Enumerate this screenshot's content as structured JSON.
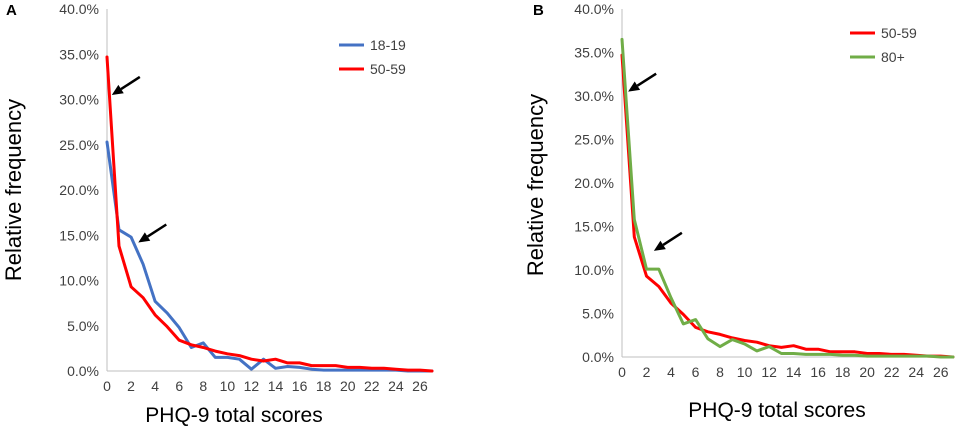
{
  "chart_data": [
    {
      "panel_label": "A",
      "type": "line",
      "xlabel": "PHQ-9 total scores",
      "ylabel": "Relative frequency",
      "ylim": [
        0,
        40
      ],
      "xlim": [
        0,
        27
      ],
      "xticks": [
        "0",
        "2",
        "4",
        "6",
        "8",
        "10",
        "12",
        "14",
        "16",
        "18",
        "20",
        "22",
        "24",
        "26"
      ],
      "yticks": [
        "0.0%",
        "5.0%",
        "10.0%",
        "15.0%",
        "20.0%",
        "25.0%",
        "30.0%",
        "35.0%",
        "40.0%"
      ],
      "legend_position": "top-right",
      "x": [
        0,
        1,
        2,
        3,
        4,
        5,
        6,
        7,
        8,
        9,
        10,
        11,
        12,
        13,
        14,
        15,
        16,
        17,
        18,
        19,
        20,
        21,
        22,
        23,
        24,
        25,
        26,
        27
      ],
      "series": [
        {
          "name": "18-19",
          "color": "#4472C4",
          "values": [
            25.3,
            15.6,
            14.8,
            11.8,
            7.7,
            6.4,
            4.8,
            2.6,
            3.1,
            1.5,
            1.5,
            1.3,
            0.2,
            1.3,
            0.3,
            0.5,
            0.4,
            0.2,
            0.1,
            0.1,
            0.1,
            0.1,
            0.1,
            0.1,
            0.1,
            0.0,
            0.0,
            0.0
          ]
        },
        {
          "name": "50-59",
          "color": "#FF0000",
          "values": [
            34.7,
            13.8,
            9.3,
            8.1,
            6.2,
            4.9,
            3.4,
            2.9,
            2.6,
            2.2,
            1.9,
            1.7,
            1.3,
            1.1,
            1.3,
            0.9,
            0.9,
            0.6,
            0.6,
            0.6,
            0.4,
            0.4,
            0.3,
            0.3,
            0.2,
            0.1,
            0.1,
            0.0
          ]
        }
      ],
      "annotations": [
        {
          "type": "arrow",
          "points_to_x": 0.4,
          "points_to_y": 30.5
        },
        {
          "type": "arrow",
          "points_to_x": 2.6,
          "points_to_y": 14.2
        }
      ]
    },
    {
      "panel_label": "B",
      "type": "line",
      "xlabel": "PHQ-9 total scores",
      "ylabel": "Relative frequency",
      "ylim": [
        0,
        40
      ],
      "xlim": [
        0,
        27
      ],
      "xticks": [
        "0",
        "2",
        "4",
        "6",
        "8",
        "10",
        "12",
        "14",
        "16",
        "18",
        "20",
        "22",
        "24",
        "26"
      ],
      "yticks": [
        "0.0%",
        "5.0%",
        "10.0%",
        "15.0%",
        "20.0%",
        "25.0%",
        "30.0%",
        "35.0%",
        "40.0%"
      ],
      "legend_position": "top-right",
      "x": [
        0,
        1,
        2,
        3,
        4,
        5,
        6,
        7,
        8,
        9,
        10,
        11,
        12,
        13,
        14,
        15,
        16,
        17,
        18,
        19,
        20,
        21,
        22,
        23,
        24,
        25,
        26,
        27
      ],
      "series": [
        {
          "name": "50-59",
          "color": "#FF0000",
          "values": [
            34.7,
            13.8,
            9.3,
            8.1,
            6.2,
            4.9,
            3.4,
            2.9,
            2.6,
            2.2,
            1.9,
            1.7,
            1.3,
            1.1,
            1.3,
            0.9,
            0.9,
            0.6,
            0.6,
            0.6,
            0.4,
            0.4,
            0.3,
            0.3,
            0.2,
            0.1,
            0.1,
            0.0
          ]
        },
        {
          "name": "80+",
          "color": "#70AD47",
          "values": [
            36.5,
            15.8,
            10.1,
            10.1,
            6.8,
            3.8,
            4.3,
            2.1,
            1.2,
            2.0,
            1.5,
            0.7,
            1.2,
            0.4,
            0.4,
            0.3,
            0.3,
            0.3,
            0.2,
            0.2,
            0.1,
            0.1,
            0.1,
            0.1,
            0.1,
            0.1,
            0.0,
            0.0
          ]
        }
      ],
      "annotations": [
        {
          "type": "arrow",
          "points_to_x": 0.5,
          "points_to_y": 30.5
        },
        {
          "type": "arrow",
          "points_to_x": 2.6,
          "points_to_y": 12.2
        }
      ]
    }
  ]
}
